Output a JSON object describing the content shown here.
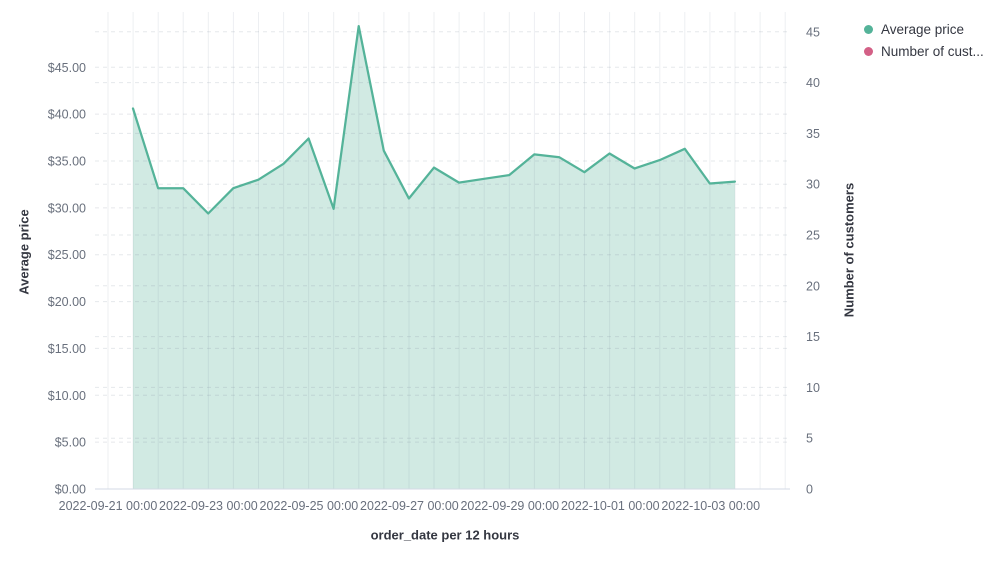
{
  "legend": {
    "items": [
      {
        "label": "Average price",
        "color": "#54B399"
      },
      {
        "label": "Number of cust...",
        "color": "#D36086"
      }
    ]
  },
  "chart_data": {
    "type": "area",
    "title": "",
    "xlabel": "order_date per 12 hours",
    "ylabel_left": "Average price",
    "ylabel_right": "Number of customers",
    "grid": true,
    "legend_position": "top-right",
    "x_tick_labels": [
      "2022-09-21 00:00",
      "2022-09-23 00:00",
      "2022-09-25 00:00",
      "2022-09-27 00:00",
      "2022-09-29 00:00",
      "2022-10-01 00:00",
      "2022-10-03 00:00"
    ],
    "left_axis": {
      "title": "Average price",
      "tick_labels": [
        "$0.00",
        "$5.00",
        "$10.00",
        "$15.00",
        "$20.00",
        "$25.00",
        "$30.00",
        "$35.00",
        "$40.00",
        "$45.00"
      ],
      "tick_values": [
        0,
        5,
        10,
        15,
        20,
        25,
        30,
        35,
        40,
        45
      ],
      "range": [
        0,
        50.9
      ]
    },
    "right_axis": {
      "title": "Number of customers",
      "tick_labels": [
        "0",
        "5",
        "10",
        "15",
        "20",
        "25",
        "30",
        "35",
        "40",
        "45"
      ],
      "tick_values": [
        0,
        5,
        10,
        15,
        20,
        25,
        30,
        35,
        40,
        45
      ],
      "range": [
        0,
        46.95
      ]
    },
    "series": [
      {
        "name": "Average price",
        "axis": "left",
        "color": "#54B399",
        "fill_opacity": 0.27,
        "x": [
          "2022-09-21 12:00",
          "2022-09-22 00:00",
          "2022-09-22 12:00",
          "2022-09-23 00:00",
          "2022-09-23 12:00",
          "2022-09-24 00:00",
          "2022-09-24 12:00",
          "2022-09-25 00:00",
          "2022-09-25 12:00",
          "2022-09-26 00:00",
          "2022-09-26 12:00",
          "2022-09-27 00:00",
          "2022-09-27 12:00",
          "2022-09-28 00:00",
          "2022-09-28 12:00",
          "2022-09-29 00:00",
          "2022-09-29 12:00",
          "2022-09-30 00:00",
          "2022-09-30 12:00",
          "2022-10-01 00:00",
          "2022-10-01 12:00",
          "2022-10-02 00:00",
          "2022-10-02 12:00",
          "2022-10-03 00:00",
          "2022-10-03 12:00"
        ],
        "values": [
          40.6,
          32.1,
          32.1,
          29.4,
          32.1,
          33.0,
          34.7,
          37.4,
          29.9,
          49.4,
          36.1,
          31.0,
          34.3,
          32.7,
          33.1,
          33.5,
          35.7,
          35.4,
          33.8,
          35.8,
          34.2,
          35.1,
          36.3,
          32.6,
          32.8
        ]
      },
      {
        "name": "Number of customers",
        "axis": "right",
        "color": "#D36086",
        "values": []
      }
    ]
  },
  "colors": {
    "tick_text": "#69707D",
    "title_text": "#343741",
    "grid_dash": "rgba(110,125,145,0.18)",
    "grid_vertical": "rgba(110,125,145,0.12)",
    "axis_line": "#D3DAE6"
  }
}
